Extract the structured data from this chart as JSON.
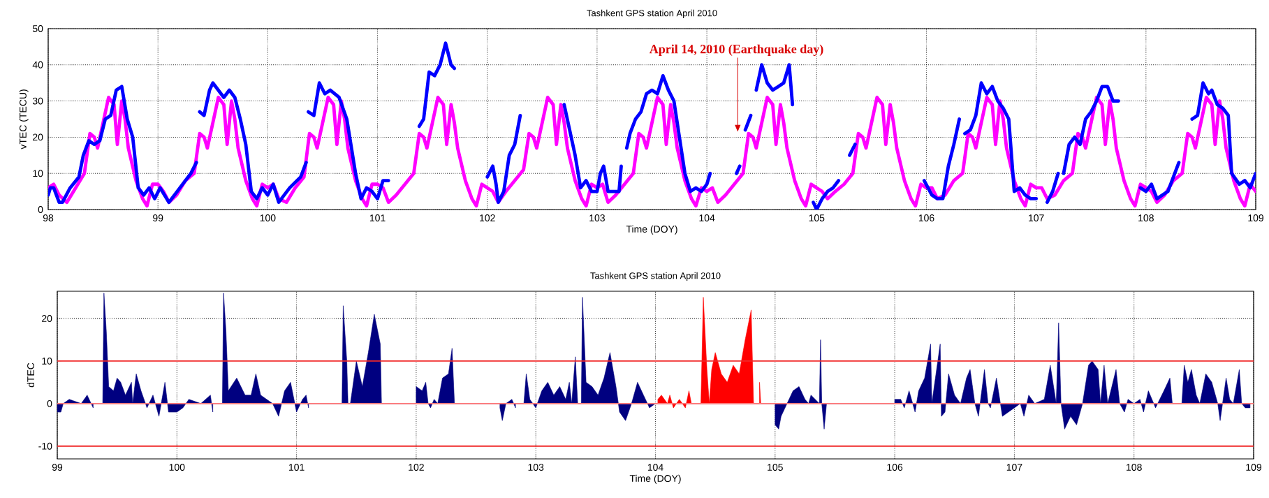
{
  "chart_data": [
    {
      "type": "line",
      "title": "Tashkent GPS station April 2010",
      "xlabel": "Time (DOY)",
      "ylabel": "vTEC (TECU)",
      "xlim": [
        98,
        109
      ],
      "xticks": [
        98,
        99,
        100,
        101,
        102,
        103,
        104,
        105,
        106,
        107,
        108,
        109
      ],
      "ylim": [
        0,
        50
      ],
      "yticks": [
        0,
        10,
        20,
        30,
        40,
        50
      ],
      "grid": true,
      "annotations": [
        "April 14, 2010 (Earthquake day)"
      ],
      "series": [
        {
          "color": "#ff00ff",
          "x": [
            98,
            98.05,
            98.1,
            98.17,
            98.25,
            98.33,
            98.38,
            98.42,
            98.45,
            98.5,
            98.55,
            98.6,
            98.63,
            98.67,
            98.7,
            98.73,
            98.8,
            98.86,
            98.9,
            98.95,
            99,
            99.05,
            99.1,
            99.17,
            99.25,
            99.33,
            99.38,
            99.42,
            99.45,
            99.5,
            99.55,
            99.6,
            99.63,
            99.67,
            99.7,
            99.73,
            99.8,
            99.86,
            99.9,
            99.95,
            100,
            100.05,
            100.1,
            100.17,
            100.25,
            100.33,
            100.38,
            100.42,
            100.45,
            100.5,
            100.55,
            100.6,
            100.63,
            100.67,
            100.7,
            100.73,
            100.8,
            100.86,
            100.9,
            100.95,
            101,
            101.05,
            101.1,
            101.17,
            101.25,
            101.33,
            101.38,
            101.42,
            101.45,
            101.5,
            101.55,
            101.6,
            101.63,
            101.67,
            101.7,
            101.73,
            101.8,
            101.86,
            101.9,
            101.95,
            102,
            102.05,
            102.1,
            102.17,
            102.25,
            102.33,
            102.38,
            102.42,
            102.45,
            102.5,
            102.55,
            102.6,
            102.63,
            102.67,
            102.7,
            102.73,
            102.8,
            102.86,
            102.9,
            102.95,
            103,
            103.05,
            103.1,
            103.17,
            103.25,
            103.33,
            103.38,
            103.42,
            103.45,
            103.5,
            103.55,
            103.6,
            103.63,
            103.67,
            103.7,
            103.73,
            103.8,
            103.86,
            103.9,
            103.95,
            104,
            104.05,
            104.1,
            104.17,
            104.25,
            104.33,
            104.38,
            104.42,
            104.45,
            104.5,
            104.55,
            104.6,
            104.63,
            104.67,
            104.7,
            104.73,
            104.8,
            104.86,
            104.9,
            104.95,
            105,
            105.05,
            105.1,
            105.17,
            105.25,
            105.33,
            105.38,
            105.42,
            105.45,
            105.5,
            105.55,
            105.6,
            105.63,
            105.67,
            105.7,
            105.73,
            105.8,
            105.86,
            105.9,
            105.95,
            106,
            106.05,
            106.1,
            106.17,
            106.25,
            106.33,
            106.38,
            106.42,
            106.45,
            106.5,
            106.55,
            106.6,
            106.63,
            106.67,
            106.7,
            106.73,
            106.8,
            106.86,
            106.9,
            106.95,
            107,
            107.05,
            107.1,
            107.17,
            107.25,
            107.33,
            107.38,
            107.42,
            107.45,
            107.5,
            107.55,
            107.6,
            107.63,
            107.67,
            107.7,
            107.73,
            107.8,
            107.86,
            107.9,
            107.95,
            108,
            108.05,
            108.1,
            108.17,
            108.25,
            108.33,
            108.38,
            108.42,
            108.45,
            108.5,
            108.55,
            108.6,
            108.63,
            108.67,
            108.7,
            108.73,
            108.8,
            108.86,
            108.9,
            108.95,
            109
          ],
          "values": [
            6,
            7,
            4,
            2,
            6,
            10,
            21,
            20,
            17,
            24,
            31,
            29,
            18,
            30,
            25,
            17,
            8,
            3,
            1,
            7,
            7,
            5,
            2,
            4,
            8,
            10,
            21,
            20,
            17,
            24,
            31,
            29,
            18,
            30,
            25,
            17,
            8,
            3,
            1,
            7,
            6,
            7,
            3,
            2,
            6,
            9,
            21,
            20,
            17,
            24,
            31,
            29,
            18,
            30,
            25,
            17,
            8,
            3,
            1,
            7,
            7,
            6,
            2,
            4,
            7,
            10,
            21,
            20,
            17,
            24,
            31,
            29,
            18,
            29,
            24,
            17,
            8,
            3,
            1,
            7,
            6,
            5,
            2,
            5,
            8,
            11,
            21,
            20,
            17,
            24,
            31,
            29,
            18,
            29,
            24,
            17,
            8,
            3,
            1,
            7,
            6,
            7,
            2,
            4,
            7,
            10,
            21,
            20,
            17,
            24,
            31,
            29,
            18,
            29,
            24,
            17,
            8,
            3,
            1,
            6,
            5,
            6,
            2,
            4,
            7,
            10,
            21,
            20,
            17,
            24,
            31,
            29,
            18,
            29,
            24,
            17,
            8,
            3,
            1,
            7,
            6,
            5,
            3,
            5,
            7,
            10,
            21,
            20,
            17,
            24,
            31,
            29,
            18,
            29,
            24,
            17,
            8,
            3,
            1,
            7,
            6,
            6,
            3,
            4,
            8,
            10,
            21,
            20,
            17,
            24,
            31,
            29,
            18,
            30,
            25,
            17,
            8,
            3,
            1,
            7,
            6,
            6,
            3,
            4,
            8,
            10,
            21,
            20,
            17,
            24,
            31,
            29,
            18,
            30,
            25,
            17,
            8,
            3,
            1,
            7,
            6,
            5,
            2,
            4,
            8,
            10,
            21,
            20,
            17,
            24,
            31,
            29,
            18,
            30,
            25,
            17,
            8,
            3,
            1,
            7,
            5
          ]
        },
        {
          "color": "#0000ff",
          "x": [
            98,
            98.02,
            98.05,
            98.1,
            98.13,
            98.2,
            98.28,
            98.32,
            98.37,
            98.42,
            98.47,
            98.52,
            98.57,
            98.62,
            98.67,
            98.72,
            98.77,
            98.82,
            98.87,
            98.92,
            98.97,
            99.02,
            99.1,
            99.2,
            99.3,
            99.35,
            99.36,
            99.38,
            99.42,
            99.47,
            99.5,
            99.55,
            99.6,
            99.65,
            99.7,
            99.75,
            99.8,
            99.85,
            99.9,
            99.95,
            100,
            100.05,
            100.1,
            100.2,
            100.3,
            100.35,
            100.36,
            100.37,
            100.42,
            100.47,
            100.52,
            100.57,
            100.65,
            100.72,
            100.8,
            100.85,
            100.9,
            100.95,
            101,
            101.05,
            101.1,
            101.2,
            101.38,
            101.42,
            101.47,
            101.52,
            101.57,
            101.62,
            101.67,
            101.7,
            101.8,
            102,
            102.05,
            102.08,
            102.1,
            102.15,
            102.2,
            102.25,
            102.3,
            102.5,
            102.7,
            102.75,
            102.8,
            102.85,
            102.9,
            102.95,
            103,
            103.03,
            103.06,
            103.1,
            103.15,
            103.2,
            103.22,
            103.24,
            103.27,
            103.3,
            103.35,
            103.4,
            103.45,
            103.5,
            103.55,
            103.6,
            103.65,
            103.7,
            103.75,
            103.8,
            103.85,
            103.9,
            103.95,
            104,
            104.03,
            104.15,
            104.27,
            104.3,
            104.32,
            104.35,
            104.4,
            104.42,
            104.45,
            104.5,
            104.55,
            104.6,
            104.65,
            104.7,
            104.75,
            104.78,
            104.9,
            104.97,
            105,
            105.05,
            105.1,
            105.15,
            105.2,
            105.25,
            105.3,
            105.35,
            105.6,
            105.98,
            106.05,
            106.1,
            106.15,
            106.2,
            106.25,
            106.3,
            106.32,
            106.35,
            106.4,
            106.45,
            106.5,
            106.55,
            106.6,
            106.65,
            106.7,
            106.75,
            106.8,
            106.85,
            106.9,
            106.95,
            107,
            107.05,
            107.1,
            107.15,
            107.2,
            107.22,
            107.25,
            107.3,
            107.35,
            107.4,
            107.45,
            107.5,
            107.55,
            107.6,
            107.65,
            107.7,
            107.75,
            107.85,
            107.95,
            108,
            108.05,
            108.1,
            108.2,
            108.3,
            108.36,
            108.42,
            108.47,
            108.52,
            108.57,
            108.6,
            108.65,
            108.7,
            108.75,
            108.78,
            108.85,
            108.9,
            108.95,
            109
          ],
          "values": [
            4,
            6,
            6,
            2,
            2,
            6,
            9,
            15,
            19,
            18,
            19,
            25,
            26,
            33,
            34,
            25,
            20,
            6,
            4,
            6,
            3,
            6,
            2,
            6,
            10,
            13,
            null,
            27,
            26,
            33,
            35,
            33,
            31,
            33,
            31,
            25,
            18,
            5,
            3,
            6,
            4,
            7,
            2,
            6,
            9,
            13,
            null,
            27,
            26,
            35,
            32,
            33,
            31,
            25,
            10,
            3,
            6,
            5,
            3,
            8,
            8,
            null,
            23,
            25,
            38,
            37,
            40,
            46,
            40,
            39,
            null,
            9,
            12,
            7,
            2,
            5,
            15,
            18,
            26,
            null,
            29,
            22,
            15,
            6,
            8,
            5,
            5,
            10,
            12,
            5,
            5,
            5,
            12,
            null,
            17,
            21,
            25,
            27,
            32,
            33,
            32,
            37,
            33,
            30,
            20,
            10,
            5,
            6,
            5,
            7,
            10,
            null,
            10,
            12,
            null,
            22,
            26,
            null,
            33,
            40,
            35,
            33,
            34,
            35,
            40,
            29,
            null,
            2,
            0,
            3,
            5,
            6,
            8,
            null,
            15,
            18,
            null,
            8,
            4,
            3,
            3,
            12,
            18,
            25,
            null,
            21,
            22,
            26,
            35,
            32,
            34,
            30,
            28,
            25,
            5,
            6,
            4,
            3,
            3,
            null,
            2,
            5,
            10,
            null,
            10,
            18,
            20,
            18,
            25,
            27,
            30,
            34,
            34,
            30,
            30,
            null,
            6,
            5,
            7,
            3,
            5,
            13,
            null,
            25,
            26,
            35,
            32,
            33,
            29,
            28,
            26,
            10,
            7,
            8,
            6,
            10
          ]
        }
      ]
    },
    {
      "type": "area",
      "title": "Tashkent GPS station April 2010",
      "xlabel": "Time (DOY)",
      "ylabel": "dTEC",
      "xlim": [
        99,
        109
      ],
      "xticks": [
        99,
        100,
        101,
        102,
        103,
        104,
        105,
        106,
        107,
        108,
        109
      ],
      "ylim": [
        -13,
        26.4
      ],
      "yticks": [
        -10,
        0,
        10,
        20
      ],
      "grid": true,
      "ref_lines": [
        {
          "axis": "y",
          "value": 10,
          "color": "#f02828"
        },
        {
          "axis": "y",
          "value": 0,
          "color": "#ff7a7a"
        },
        {
          "axis": "y",
          "value": -10,
          "color": "#f02828"
        }
      ],
      "series": [
        {
          "color": "#000080",
          "x": [
            99,
            99.03,
            99.05,
            99.1,
            99.2,
            99.25,
            99.3,
            99.34,
            99.38,
            99.39,
            99.41,
            99.43,
            99.47,
            99.5,
            99.53,
            99.57,
            99.62,
            99.63,
            99.66,
            99.7,
            99.75,
            99.8,
            99.85,
            99.9,
            99.93,
            100,
            100.05,
            100.1,
            100.2,
            100.28,
            100.3,
            100.34,
            100.38,
            100.39,
            100.41,
            100.43,
            100.5,
            100.57,
            100.62,
            100.66,
            100.7,
            100.8,
            100.85,
            100.9,
            100.95,
            101,
            101.05,
            101.08,
            101.1,
            101.2,
            101.38,
            101.39,
            101.42,
            101.43,
            101.45,
            101.5,
            101.55,
            101.6,
            101.65,
            101.7,
            101.71,
            101.85,
            102,
            102.05,
            102.08,
            102.1,
            102.12,
            102.15,
            102.18,
            102.22,
            102.27,
            102.3,
            102.32,
            102.5,
            102.7,
            102.72,
            102.75,
            102.8,
            102.83,
            102.87,
            102.9,
            102.92,
            102.95,
            103,
            103.05,
            103.1,
            103.15,
            103.2,
            103.25,
            103.28,
            103.3,
            103.33,
            103.35,
            103.38,
            103.39,
            103.42,
            103.47,
            103.52,
            103.57,
            103.62,
            103.67,
            103.7,
            103.75,
            103.8,
            103.85,
            103.9,
            103.95,
            104,
            104.01,
            104.5,
            105,
            105.03,
            105.05,
            105.1,
            105.15,
            105.2,
            105.25,
            105.28,
            105.3,
            105.37,
            105.38,
            105.39,
            105.41,
            105.43,
            105.7,
            106,
            106.05,
            106.08,
            106.12,
            106.17,
            106.2,
            106.25,
            106.3,
            106.31,
            106.38,
            106.39,
            106.42,
            106.45,
            106.5,
            106.55,
            106.6,
            106.63,
            106.67,
            106.7,
            106.75,
            106.78,
            106.8,
            106.85,
            106.9,
            106.95,
            107,
            107.05,
            107.08,
            107.12,
            107.17,
            107.25,
            107.3,
            107.35,
            107.37,
            107.39,
            107.42,
            107.47,
            107.52,
            107.57,
            107.62,
            107.65,
            107.7,
            107.72,
            107.75,
            107.78,
            107.85,
            107.88,
            107.92,
            107.95,
            108,
            108.05,
            108.08,
            108.12,
            108.18,
            108.25,
            108.3,
            108.32,
            108.4,
            108.42,
            108.45,
            108.48,
            108.52,
            108.55,
            108.6,
            108.65,
            108.7,
            108.72,
            108.77,
            108.8,
            108.83,
            108.88,
            108.9,
            108.93,
            108.97
          ],
          "values": [
            -2,
            -2,
            0,
            1,
            0,
            2,
            -1,
            null,
            0,
            26,
            17,
            4,
            3,
            6,
            5,
            2,
            5,
            0,
            7,
            3,
            -1,
            2,
            -3,
            5,
            -2,
            -2,
            -1,
            1,
            0,
            2,
            -2,
            null,
            0,
            26,
            17,
            3,
            6,
            2,
            2,
            7,
            2,
            0,
            -3,
            3,
            5,
            -2,
            1,
            2,
            -1,
            null,
            0,
            23,
            10,
            0,
            0,
            10,
            4,
            12,
            21,
            14,
            0,
            null,
            4,
            3,
            5,
            0,
            -1,
            1,
            0,
            6,
            7,
            13,
            0,
            null,
            -1,
            -4,
            0,
            1,
            -1,
            null,
            0,
            7,
            1,
            -1,
            3,
            5,
            2,
            4,
            1,
            5,
            0,
            11,
            0,
            0,
            25,
            5,
            4,
            2,
            6,
            12,
            4,
            -2,
            -4,
            0,
            5,
            2,
            -1,
            0,
            0,
            null,
            -5,
            -6,
            -3,
            0,
            3,
            4,
            1,
            0,
            2,
            0,
            15,
            0,
            -6,
            0,
            null,
            1,
            1,
            -1,
            3,
            -2,
            3,
            6,
            14,
            0,
            14,
            -3,
            -2,
            7,
            2,
            0,
            6,
            8,
            0,
            -3,
            8,
            0,
            -1,
            6,
            -3,
            -2,
            -1,
            0,
            -3,
            2,
            0,
            1,
            9,
            0,
            19,
            0,
            -6,
            -3,
            -5,
            0,
            9,
            10,
            8,
            0,
            9,
            0,
            8,
            0,
            -2,
            1,
            0,
            1,
            -2,
            3,
            -1,
            3,
            6,
            0,
            0,
            9,
            5,
            8,
            2,
            0,
            7,
            5,
            0,
            -4,
            6,
            1,
            0,
            8,
            0,
            -1,
            -1
          ]
        },
        {
          "color": "#ff0000",
          "x": [
            104.02,
            104.05,
            104.1,
            104.12,
            104.15,
            104.2,
            104.25,
            104.28,
            104.3,
            104.34,
            104.38,
            104.4,
            104.43,
            104.45,
            104.47,
            104.5,
            104.55,
            104.6,
            104.65,
            104.7,
            104.75,
            104.8,
            104.82,
            104.85,
            104.87,
            104.88
          ],
          "values": [
            1,
            2,
            0,
            2,
            -1,
            1,
            -1,
            3,
            0,
            null,
            0,
            25,
            8,
            0,
            8,
            12,
            7,
            5,
            9,
            7,
            15,
            22,
            0,
            null,
            5,
            0
          ]
        }
      ]
    }
  ]
}
